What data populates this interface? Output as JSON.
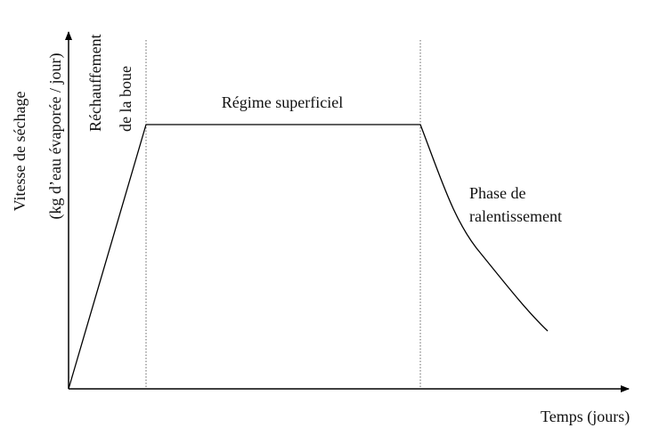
{
  "y_axis_label": {
    "line1": "Vitesse de séchage",
    "line2": "(kg d’eau évaporée / jour)"
  },
  "x_axis_label": "Temps (jours)",
  "phases": {
    "heating": {
      "line1": "Réchauffement",
      "line2": "de la boue"
    },
    "constant": "Régime superficiel",
    "falling": {
      "line1": "Phase de",
      "line2": "ralentissement"
    }
  }
}
